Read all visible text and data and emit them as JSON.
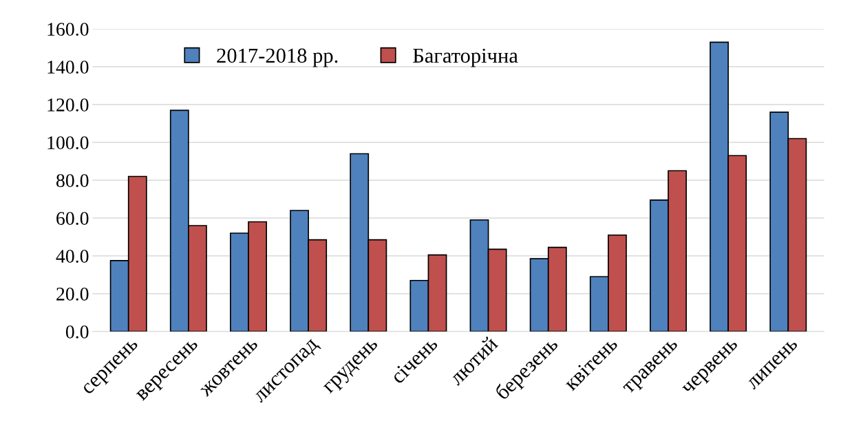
{
  "chart_data": {
    "type": "bar",
    "categories": [
      "серпень",
      "вересень",
      "жовтень",
      "листопад",
      "грудень",
      "січень",
      "лютий",
      "березень",
      "квітень",
      "травень",
      "червень",
      "липень"
    ],
    "series": [
      {
        "name": "2017-2018 рр.",
        "color": "#4f81bd",
        "values": [
          37.5,
          117,
          52,
          64,
          94,
          27,
          59,
          38.5,
          29,
          69.5,
          153,
          116
        ]
      },
      {
        "name": "Багаторічна",
        "color": "#c0504d",
        "values": [
          82,
          56,
          58,
          48.5,
          48.5,
          40.5,
          43.5,
          44.5,
          51,
          85,
          93,
          102
        ]
      }
    ],
    "ylim": [
      0,
      160
    ],
    "yticks": [
      {
        "value": 0,
        "label": "0.0"
      },
      {
        "value": 20,
        "label": "20.0"
      },
      {
        "value": 40,
        "label": "40.0"
      },
      {
        "value": 60,
        "label": "60.0"
      },
      {
        "value": 80,
        "label": "80.0"
      },
      {
        "value": 100,
        "label": "100.0"
      },
      {
        "value": 120,
        "label": "120.0"
      },
      {
        "value": 140,
        "label": "140.0"
      },
      {
        "value": 160,
        "label": "160.0"
      }
    ],
    "grid": "y",
    "legend": "top left"
  }
}
